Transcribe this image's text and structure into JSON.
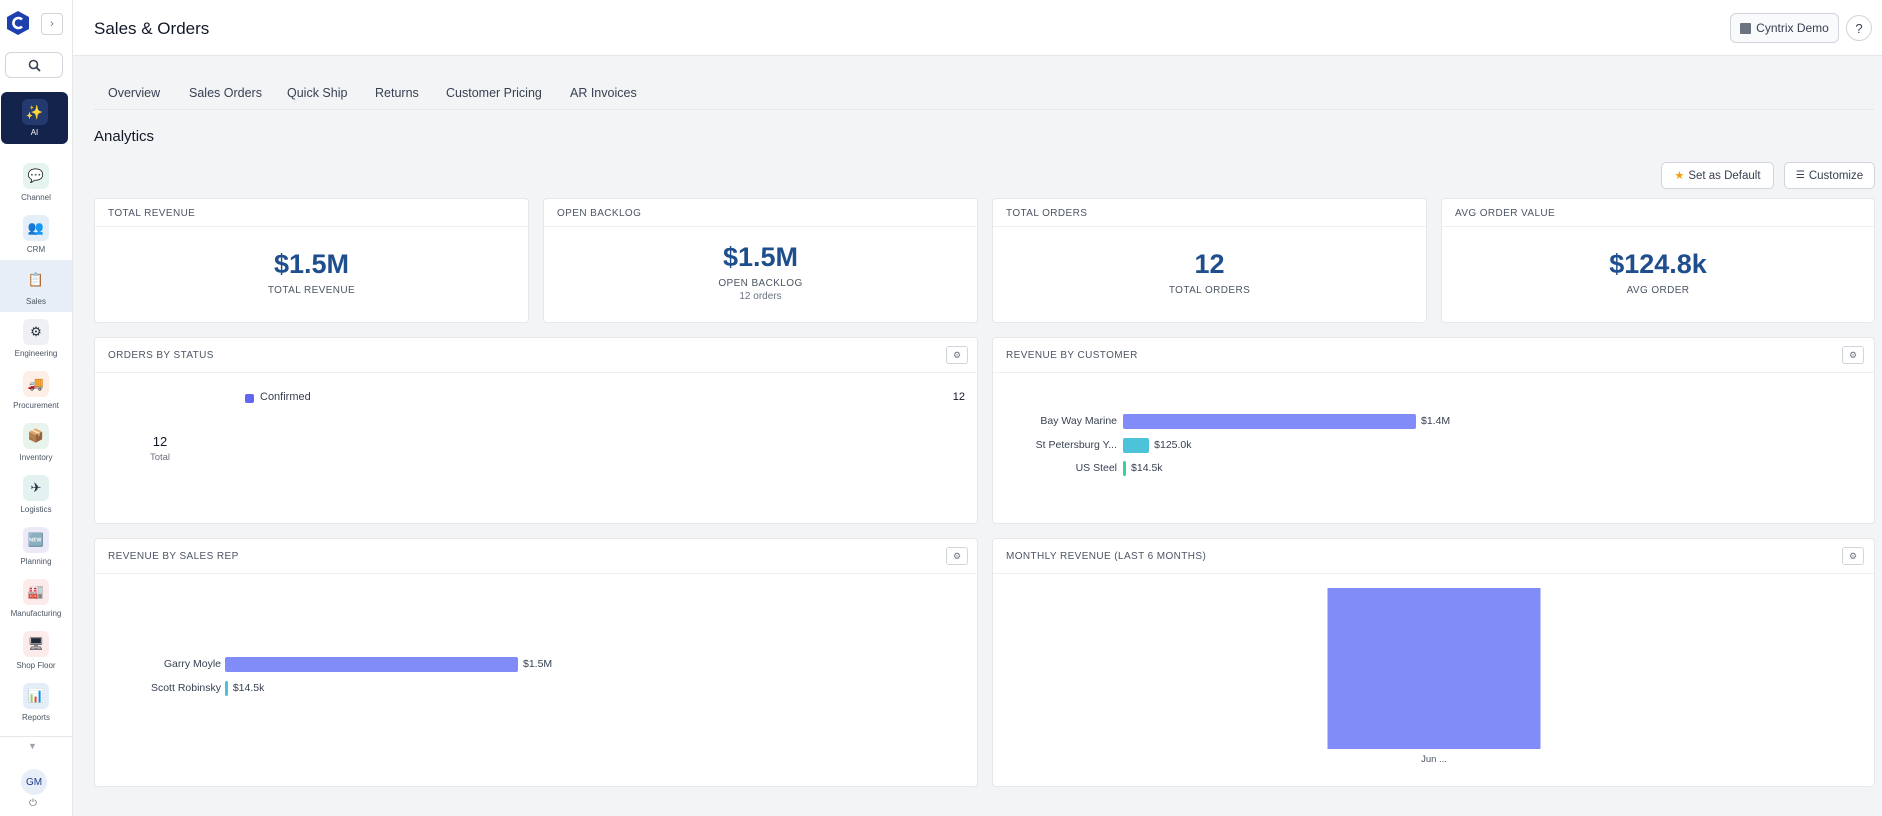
{
  "sidebar": {
    "ai_label": "AI",
    "items": [
      {
        "label": "Channel",
        "icon": "chat-bubble-icon",
        "glyph": "💬",
        "bg": "#e6f4ef"
      },
      {
        "label": "CRM",
        "icon": "users-icon",
        "glyph": "👥",
        "bg": "#e3eef6"
      },
      {
        "label": "Sales",
        "icon": "clipboard-icon",
        "glyph": "📋",
        "bg": "#e8eef7"
      },
      {
        "label": "Engineering",
        "icon": "gear-icon",
        "glyph": "⚙",
        "bg": "#eef0f3"
      },
      {
        "label": "Procurement",
        "icon": "truck-icon",
        "glyph": "🚚",
        "bg": "#fdeee6"
      },
      {
        "label": "Inventory",
        "icon": "box-icon",
        "glyph": "📦",
        "bg": "#e8f3ec"
      },
      {
        "label": "Logistics",
        "icon": "plane-icon",
        "glyph": "✈",
        "bg": "#e3f1f0"
      },
      {
        "label": "Planning",
        "icon": "new-badge-icon",
        "glyph": "🆕",
        "bg": "#eceaf8"
      },
      {
        "label": "Manufacturing",
        "icon": "factory-icon",
        "glyph": "🏭",
        "bg": "#fdeaea"
      },
      {
        "label": "Shop Floor",
        "icon": "monitor-icon",
        "glyph": "🖥",
        "bg": "#fdeaea"
      },
      {
        "label": "Reports",
        "icon": "bar-chart-icon",
        "glyph": "📊",
        "bg": "#e3eef8"
      }
    ],
    "user_initials": "GM"
  },
  "header": {
    "title": "Sales & Orders",
    "org_name": "Cyntrix Demo",
    "help": "?"
  },
  "tabs": [
    "Overview",
    "Sales Orders",
    "Quick Ship",
    "Returns",
    "Customer Pricing",
    "AR Invoices"
  ],
  "analytics": {
    "title": "Analytics",
    "set_default_label": "Set as Default",
    "customize_label": "Customize"
  },
  "kpis": [
    {
      "title": "TOTAL REVENUE",
      "value": "$1.5M",
      "label": "TOTAL REVENUE",
      "sub": ""
    },
    {
      "title": "OPEN BACKLOG",
      "value": "$1.5M",
      "label": "OPEN BACKLOG",
      "sub": "12 orders"
    },
    {
      "title": "TOTAL ORDERS",
      "value": "12",
      "label": "TOTAL ORDERS",
      "sub": ""
    },
    {
      "title": "AVG ORDER VALUE",
      "value": "$124.8k",
      "label": "AVG ORDER",
      "sub": ""
    }
  ],
  "orders_by_status": {
    "title": "ORDERS BY STATUS",
    "total": "12",
    "total_label": "Total",
    "legend": [
      {
        "label": "Confirmed",
        "count": "12",
        "color": "#6366f1"
      }
    ]
  },
  "revenue_by_customer": {
    "title": "REVENUE BY CUSTOMER",
    "max": 1400000,
    "rows": [
      {
        "label": "Bay Way Marine",
        "value": 1400000,
        "value_label": "$1.4M",
        "color": "#818cf8"
      },
      {
        "label": "St Petersburg Y...",
        "value": 125000,
        "value_label": "$125.0k",
        "color": "#4cc3d9"
      },
      {
        "label": "US Steel",
        "value": 14500,
        "value_label": "$14.5k",
        "color": "#34d399"
      }
    ]
  },
  "revenue_by_rep": {
    "title": "REVENUE BY SALES REP",
    "max": 1500000,
    "rows": [
      {
        "label": "Garry Moyle",
        "value": 1500000,
        "value_label": "$1.5M",
        "color": "#818cf8"
      },
      {
        "label": "Scott Robinsky",
        "value": 14500,
        "value_label": "$14.5k",
        "color": "#4cc3d9"
      }
    ]
  },
  "chart_data": {
    "type": "bar",
    "title": "MONTHLY REVENUE (LAST 6 MONTHS)",
    "categories": [
      "Jun ..."
    ],
    "values": [
      1500000
    ],
    "ylim": [
      0,
      1500000
    ],
    "color": "#818cf8"
  }
}
